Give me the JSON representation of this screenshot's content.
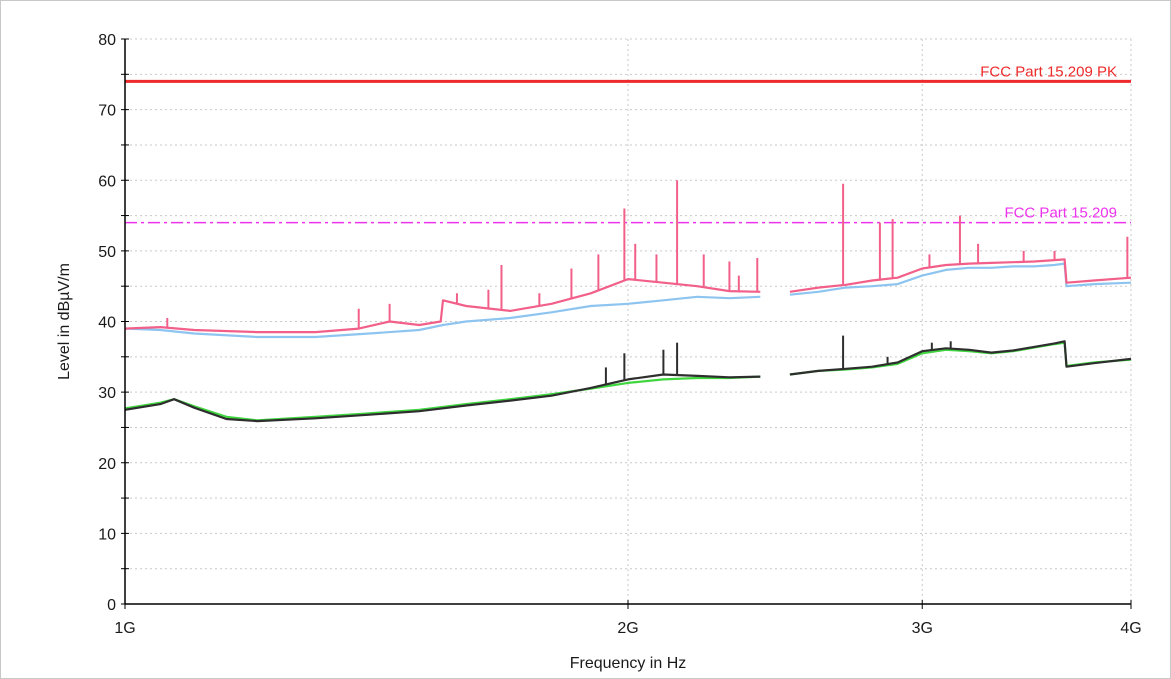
{
  "chart_data": {
    "type": "line",
    "xlabel": "Frequency in Hz",
    "ylabel": "Level in dBµV/m",
    "x_scale": "log",
    "xlim": [
      1000000000,
      4000000000
    ],
    "ylim": [
      0,
      80
    ],
    "grid": true,
    "x_ticks": [
      {
        "value": 1000000000,
        "label": "1G"
      },
      {
        "value": 2000000000,
        "label": "2G"
      },
      {
        "value": 3000000000,
        "label": "3G"
      },
      {
        "value": 4000000000,
        "label": "4G"
      }
    ],
    "y_ticks": [
      {
        "value": 0,
        "label": "0"
      },
      {
        "value": 10,
        "label": "10"
      },
      {
        "value": 20,
        "label": "20"
      },
      {
        "value": 30,
        "label": "30"
      },
      {
        "value": 40,
        "label": "40"
      },
      {
        "value": 50,
        "label": "50"
      },
      {
        "value": 60,
        "label": "60"
      },
      {
        "value": 70,
        "label": "70"
      },
      {
        "value": 80,
        "label": "80"
      }
    ],
    "limits": [
      {
        "name": "FCC Part 15.209 PK",
        "value": 74,
        "color": "#ee2a2a",
        "style": "solid"
      },
      {
        "name": "FCC Part 15.209",
        "value": 54,
        "color": "#ee33ee",
        "style": "dash-dot"
      }
    ],
    "series": [
      {
        "color": "#8ec5f0",
        "points": [
          [
            1.0,
            39
          ],
          [
            1.05,
            38.8
          ],
          [
            1.1,
            38.3
          ],
          [
            1.2,
            37.8
          ],
          [
            1.3,
            37.8
          ],
          [
            1.4,
            38.3
          ],
          [
            1.5,
            38.8
          ],
          [
            1.55,
            39.5
          ],
          [
            1.6,
            40
          ],
          [
            1.7,
            40.5
          ],
          [
            1.8,
            41.3
          ],
          [
            1.9,
            42.2
          ],
          [
            2.0,
            42.5
          ],
          [
            2.1,
            43
          ],
          [
            2.2,
            43.5
          ],
          [
            2.3,
            43.3
          ],
          [
            2.4,
            43.5
          ],
          null,
          [
            2.5,
            43.8
          ],
          [
            2.6,
            44.2
          ],
          [
            2.7,
            44.8
          ],
          [
            2.8,
            45
          ],
          [
            2.9,
            45.3
          ],
          [
            3.0,
            46.5
          ],
          [
            3.1,
            47.3
          ],
          [
            3.2,
            47.6
          ],
          [
            3.3,
            47.6
          ],
          [
            3.4,
            47.8
          ],
          [
            3.5,
            47.8
          ],
          [
            3.6,
            48
          ],
          [
            3.65,
            48.2
          ],
          [
            3.66,
            45
          ],
          [
            3.8,
            45.3
          ],
          [
            4.0,
            45.5
          ]
        ]
      },
      {
        "color": "#f2608a",
        "points": [
          [
            1.0,
            39
          ],
          [
            1.05,
            39.2
          ],
          [
            1.1,
            38.8
          ],
          [
            1.2,
            38.5
          ],
          [
            1.3,
            38.5
          ],
          [
            1.38,
            39
          ],
          [
            1.44,
            40
          ],
          [
            1.5,
            39.5
          ],
          [
            1.545,
            40
          ],
          [
            1.55,
            43
          ],
          [
            1.6,
            42.2
          ],
          [
            1.7,
            41.5
          ],
          [
            1.8,
            42.5
          ],
          [
            1.9,
            44
          ],
          [
            2.0,
            46
          ],
          [
            2.1,
            45.5
          ],
          [
            2.2,
            45
          ],
          [
            2.3,
            44.3
          ],
          [
            2.4,
            44.2
          ],
          null,
          [
            2.5,
            44.2
          ],
          [
            2.6,
            44.8
          ],
          [
            2.7,
            45.2
          ],
          [
            2.8,
            45.8
          ],
          [
            2.9,
            46.2
          ],
          [
            3.0,
            47.5
          ],
          [
            3.1,
            48
          ],
          [
            3.2,
            48.2
          ],
          [
            3.3,
            48.3
          ],
          [
            3.4,
            48.4
          ],
          [
            3.5,
            48.5
          ],
          [
            3.6,
            48.7
          ],
          [
            3.65,
            48.8
          ],
          [
            3.66,
            45.5
          ],
          [
            3.8,
            45.8
          ],
          [
            4.0,
            46.2
          ]
        ],
        "spikes": [
          [
            1.06,
            40.5
          ],
          [
            1.38,
            41.8
          ],
          [
            1.44,
            42.5
          ],
          [
            1.58,
            44
          ],
          [
            1.65,
            44.5
          ],
          [
            1.68,
            48
          ],
          [
            1.77,
            44
          ],
          [
            1.85,
            47.5
          ],
          [
            1.92,
            49.5
          ],
          [
            1.99,
            56
          ],
          [
            2.02,
            51
          ],
          [
            2.08,
            49.5
          ],
          [
            2.14,
            60
          ],
          [
            2.22,
            49.5
          ],
          [
            2.3,
            48.5
          ],
          [
            2.33,
            46.5
          ],
          [
            2.39,
            49
          ],
          [
            2.69,
            59.5
          ],
          [
            2.83,
            54
          ],
          [
            2.88,
            54.5
          ],
          [
            3.03,
            49.5
          ],
          [
            3.16,
            55
          ],
          [
            3.24,
            51
          ],
          [
            3.45,
            50
          ],
          [
            3.6,
            50
          ],
          [
            3.98,
            52
          ]
        ]
      },
      {
        "color": "#3fd63f",
        "points": [
          [
            1.0,
            27.7
          ],
          [
            1.05,
            28.5
          ],
          [
            1.07,
            29
          ],
          [
            1.1,
            28
          ],
          [
            1.15,
            26.5
          ],
          [
            1.2,
            26
          ],
          [
            1.3,
            26.5
          ],
          [
            1.4,
            27
          ],
          [
            1.5,
            27.5
          ],
          [
            1.6,
            28.3
          ],
          [
            1.7,
            29
          ],
          [
            1.8,
            29.7
          ],
          [
            1.9,
            30.5
          ],
          [
            2.0,
            31.3
          ],
          [
            2.1,
            31.8
          ],
          [
            2.2,
            32
          ],
          [
            2.3,
            32
          ],
          [
            2.4,
            32.2
          ],
          null,
          [
            2.5,
            32.5
          ],
          [
            2.6,
            33
          ],
          [
            2.7,
            33.2
          ],
          [
            2.8,
            33.5
          ],
          [
            2.9,
            34
          ],
          [
            3.0,
            35.5
          ],
          [
            3.1,
            36
          ],
          [
            3.2,
            35.8
          ],
          [
            3.3,
            35.5
          ],
          [
            3.4,
            35.8
          ],
          [
            3.5,
            36.3
          ],
          [
            3.6,
            36.8
          ],
          [
            3.65,
            37
          ],
          [
            3.66,
            33.7
          ],
          [
            3.8,
            34.2
          ],
          [
            4.0,
            34.6
          ]
        ]
      },
      {
        "color": "#2e2e2e",
        "points": [
          [
            1.0,
            27.5
          ],
          [
            1.05,
            28.3
          ],
          [
            1.07,
            29
          ],
          [
            1.1,
            27.8
          ],
          [
            1.15,
            26.2
          ],
          [
            1.2,
            25.9
          ],
          [
            1.3,
            26.3
          ],
          [
            1.4,
            26.8
          ],
          [
            1.5,
            27.3
          ],
          [
            1.6,
            28.1
          ],
          [
            1.7,
            28.8
          ],
          [
            1.8,
            29.5
          ],
          [
            1.9,
            30.6
          ],
          [
            2.0,
            31.8
          ],
          [
            2.1,
            32.5
          ],
          [
            2.2,
            32.3
          ],
          [
            2.3,
            32.1
          ],
          [
            2.4,
            32.2
          ],
          null,
          [
            2.5,
            32.5
          ],
          [
            2.6,
            33
          ],
          [
            2.7,
            33.3
          ],
          [
            2.8,
            33.6
          ],
          [
            2.9,
            34.2
          ],
          [
            3.0,
            35.8
          ],
          [
            3.1,
            36.2
          ],
          [
            3.2,
            36
          ],
          [
            3.3,
            35.6
          ],
          [
            3.4,
            35.9
          ],
          [
            3.5,
            36.4
          ],
          [
            3.6,
            36.9
          ],
          [
            3.65,
            37.2
          ],
          [
            3.66,
            33.6
          ],
          [
            3.8,
            34.1
          ],
          [
            4.0,
            34.7
          ]
        ],
        "spikes": [
          [
            1.94,
            33.5
          ],
          [
            1.99,
            35.5
          ],
          [
            2.1,
            36
          ],
          [
            2.14,
            37
          ],
          [
            2.69,
            38
          ],
          [
            2.86,
            35
          ],
          [
            3.04,
            37
          ],
          [
            3.12,
            37.2
          ]
        ]
      }
    ]
  }
}
